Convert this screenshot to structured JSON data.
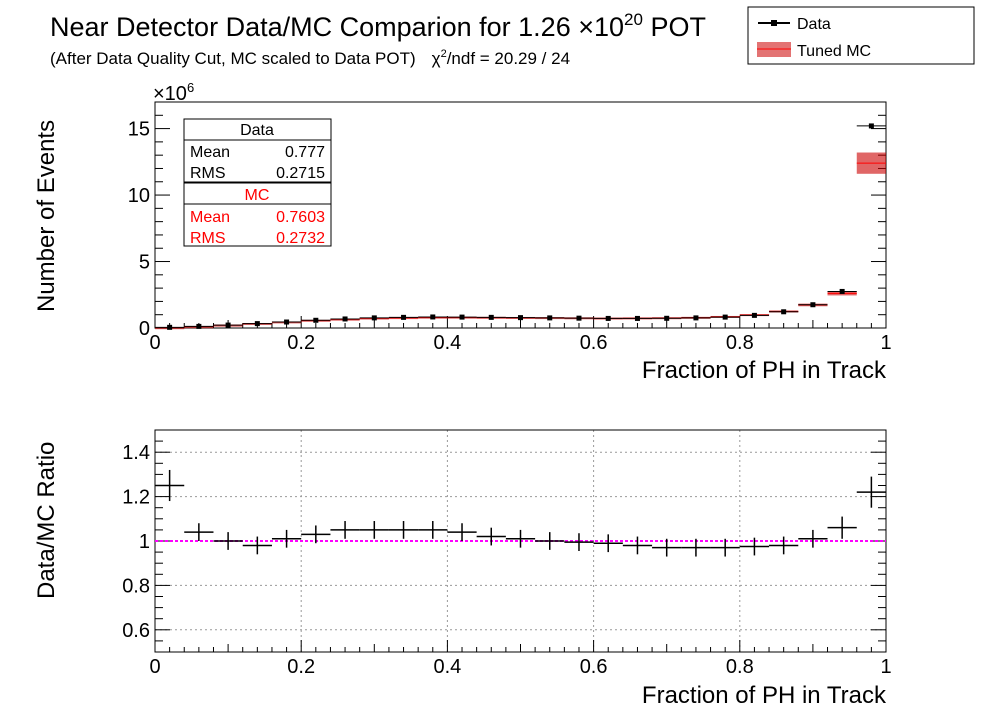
{
  "header": {
    "title": "Near Detector Data/MC Comparion for 1.26 ×10",
    "title_exp": "20",
    "title_suffix": " POT",
    "subtitle": "(After Data Quality Cut, MC scaled to Data POT)",
    "chi_prefix": "χ",
    "chi_exp": "2",
    "chi_text": "/ndf = 20.29 / 24"
  },
  "legend": {
    "items": [
      {
        "label": "Data",
        "color": "#000000"
      },
      {
        "label": "Tuned MC",
        "color": "#cc0000"
      }
    ]
  },
  "stats": {
    "data": {
      "title": "Data",
      "rows": [
        {
          "name": "Mean",
          "value": "0.777"
        },
        {
          "name": "RMS",
          "value": "0.2715"
        }
      ],
      "color": "#000000"
    },
    "mc": {
      "title": "MC",
      "rows": [
        {
          "name": "Mean",
          "value": "0.7603"
        },
        {
          "name": "RMS",
          "value": "0.2732"
        }
      ],
      "color": "#ff0000"
    }
  },
  "chart_data": [
    {
      "type": "bar",
      "panel": "top",
      "xlabel": "Fraction of PH in Track",
      "ylabel": "Number of Events",
      "y_multiplier": "×10",
      "y_multiplier_exp": "6",
      "xlim": [
        0,
        1
      ],
      "ylim": [
        0,
        17
      ],
      "xticks": [
        "0",
        "0.2",
        "0.4",
        "0.6",
        "0.8",
        "1"
      ],
      "yticks": [
        "0",
        "5",
        "10",
        "15"
      ],
      "bin_width": 0.04,
      "x": [
        0.02,
        0.06,
        0.1,
        0.14,
        0.18,
        0.22,
        0.26,
        0.3,
        0.34,
        0.38,
        0.42,
        0.46,
        0.5,
        0.54,
        0.58,
        0.62,
        0.66,
        0.7,
        0.74,
        0.78,
        0.82,
        0.86,
        0.9,
        0.94,
        0.98
      ],
      "series": [
        {
          "name": "Data",
          "values": [
            0.05,
            0.12,
            0.22,
            0.33,
            0.45,
            0.58,
            0.68,
            0.76,
            0.8,
            0.83,
            0.82,
            0.8,
            0.78,
            0.76,
            0.74,
            0.72,
            0.72,
            0.73,
            0.76,
            0.82,
            0.95,
            1.22,
            1.75,
            2.75,
            15.2
          ]
        },
        {
          "name": "Tuned MC",
          "values": [
            0.04,
            0.115,
            0.22,
            0.335,
            0.445,
            0.565,
            0.65,
            0.725,
            0.76,
            0.79,
            0.79,
            0.78,
            0.77,
            0.76,
            0.745,
            0.725,
            0.735,
            0.75,
            0.78,
            0.845,
            0.975,
            1.245,
            1.735,
            2.6,
            12.4
          ]
        }
      ],
      "mc_band_halfwidth": [
        0.02,
        0.02,
        0.03,
        0.04,
        0.05,
        0.05,
        0.05,
        0.06,
        0.06,
        0.06,
        0.06,
        0.06,
        0.06,
        0.06,
        0.06,
        0.06,
        0.06,
        0.06,
        0.06,
        0.06,
        0.07,
        0.08,
        0.1,
        0.15,
        0.8
      ],
      "colors": {
        "data": "#000000",
        "mc": "#cc0000",
        "mc_line": "#ff0000"
      }
    },
    {
      "type": "scatter",
      "panel": "bottom",
      "xlabel": "Fraction of PH in Track",
      "ylabel": "Data/MC Ratio",
      "xlim": [
        0,
        1
      ],
      "ylim": [
        0.5,
        1.5
      ],
      "xticks": [
        "0",
        "0.2",
        "0.4",
        "0.6",
        "0.8",
        "1"
      ],
      "yticks": [
        "0.6",
        "0.8",
        "1",
        "1.2",
        "1.4"
      ],
      "grid": true,
      "reference_line": 1.0,
      "reference_color": "#ff00ff",
      "x": [
        0.02,
        0.06,
        0.1,
        0.14,
        0.18,
        0.22,
        0.26,
        0.3,
        0.34,
        0.38,
        0.42,
        0.46,
        0.5,
        0.54,
        0.58,
        0.62,
        0.66,
        0.7,
        0.74,
        0.78,
        0.82,
        0.86,
        0.9,
        0.94,
        0.98
      ],
      "values": [
        1.25,
        1.04,
        1.0,
        0.98,
        1.01,
        1.03,
        1.05,
        1.05,
        1.05,
        1.05,
        1.04,
        1.02,
        1.01,
        1.0,
        0.995,
        0.99,
        0.98,
        0.97,
        0.97,
        0.97,
        0.975,
        0.98,
        1.01,
        1.06,
        1.22
      ],
      "errors": [
        0.07,
        0.04,
        0.04,
        0.04,
        0.04,
        0.04,
        0.04,
        0.04,
        0.04,
        0.04,
        0.04,
        0.04,
        0.04,
        0.04,
        0.04,
        0.04,
        0.04,
        0.04,
        0.04,
        0.04,
        0.04,
        0.04,
        0.04,
        0.05,
        0.07
      ]
    }
  ]
}
